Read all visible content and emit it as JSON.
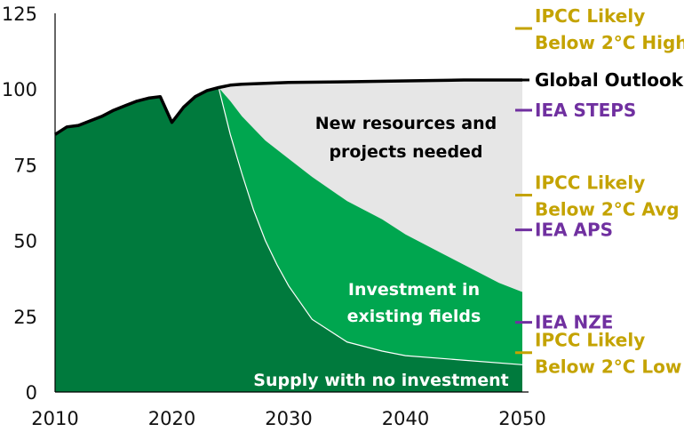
{
  "chart_data": {
    "type": "area",
    "title": "",
    "xlabel": "",
    "ylabel": "",
    "xlim": [
      2010,
      2050
    ],
    "ylim": [
      0,
      125
    ],
    "x_ticks": [
      "2010",
      "2020",
      "2030",
      "2040",
      "2050"
    ],
    "y_ticks": [
      "0",
      "25",
      "50",
      "75",
      "100",
      "125"
    ],
    "grid": false,
    "colors": {
      "no_investment": "#007a3d",
      "existing_fields": "#00a64f",
      "new_resources": "#e6e6e6",
      "global_outlook": "#000000",
      "ipcc": "#c4a300",
      "iea": "#7030a0"
    },
    "series": [
      {
        "name": "Global Outlook",
        "x": [
          2010,
          2011,
          2012,
          2013,
          2014,
          2015,
          2016,
          2017,
          2018,
          2019,
          2020,
          2021,
          2022,
          2023,
          2024,
          2025,
          2026,
          2028,
          2030,
          2035,
          2040,
          2045,
          2050
        ],
        "y": [
          85,
          87.5,
          88,
          89.5,
          91,
          93,
          94.5,
          96,
          97,
          97.5,
          89,
          94,
          97.5,
          99.5,
          100.5,
          101.3,
          101.6,
          101.9,
          102.2,
          102.4,
          102.7,
          103,
          103
        ]
      },
      {
        "name": "Investment in existing fields",
        "x": [
          2024,
          2025,
          2026,
          2027,
          2028,
          2030,
          2032,
          2035,
          2038,
          2040,
          2043,
          2045,
          2048,
          2050
        ],
        "y": [
          100.5,
          96,
          91,
          87,
          83,
          77,
          71,
          63,
          57,
          52,
          46,
          42,
          36,
          33
        ]
      },
      {
        "name": "Supply with no investment",
        "x": [
          2010,
          2011,
          2012,
          2013,
          2014,
          2015,
          2016,
          2017,
          2018,
          2019,
          2020,
          2021,
          2022,
          2023,
          2024,
          2025,
          2026,
          2027,
          2028,
          2029,
          2030,
          2032,
          2035,
          2038,
          2040,
          2045,
          2050
        ],
        "y": [
          85,
          87.5,
          88,
          89.5,
          91,
          93,
          94.5,
          96,
          97,
          97.5,
          89,
          94,
          97.5,
          99.5,
          100.5,
          85,
          72,
          60,
          50,
          42,
          35,
          24,
          16.5,
          13.5,
          12,
          10.5,
          9
        ]
      }
    ],
    "area_labels": {
      "new": [
        "New resources and",
        "projects needed"
      ],
      "existing": [
        "Investment in",
        "existing fields"
      ],
      "none": "Supply with no investment"
    },
    "markers_2050": [
      {
        "label": [
          "IPCC Likely",
          "Below 2°C High"
        ],
        "value": 120,
        "group": "ipcc"
      },
      {
        "label": [
          "Global Outlook"
        ],
        "value": 103,
        "group": "global"
      },
      {
        "label": [
          "IEA STEPS"
        ],
        "value": 93,
        "group": "iea"
      },
      {
        "label": [
          "IPCC Likely",
          "Below 2°C Avg"
        ],
        "value": 65,
        "group": "ipcc"
      },
      {
        "label": [
          "IEA APS"
        ],
        "value": 53.5,
        "group": "iea"
      },
      {
        "label": [
          "IEA NZE"
        ],
        "value": 23,
        "group": "iea"
      },
      {
        "label": [
          "IPCC Likely",
          "Below 2°C Low"
        ],
        "value": 13,
        "group": "ipcc"
      }
    ]
  }
}
